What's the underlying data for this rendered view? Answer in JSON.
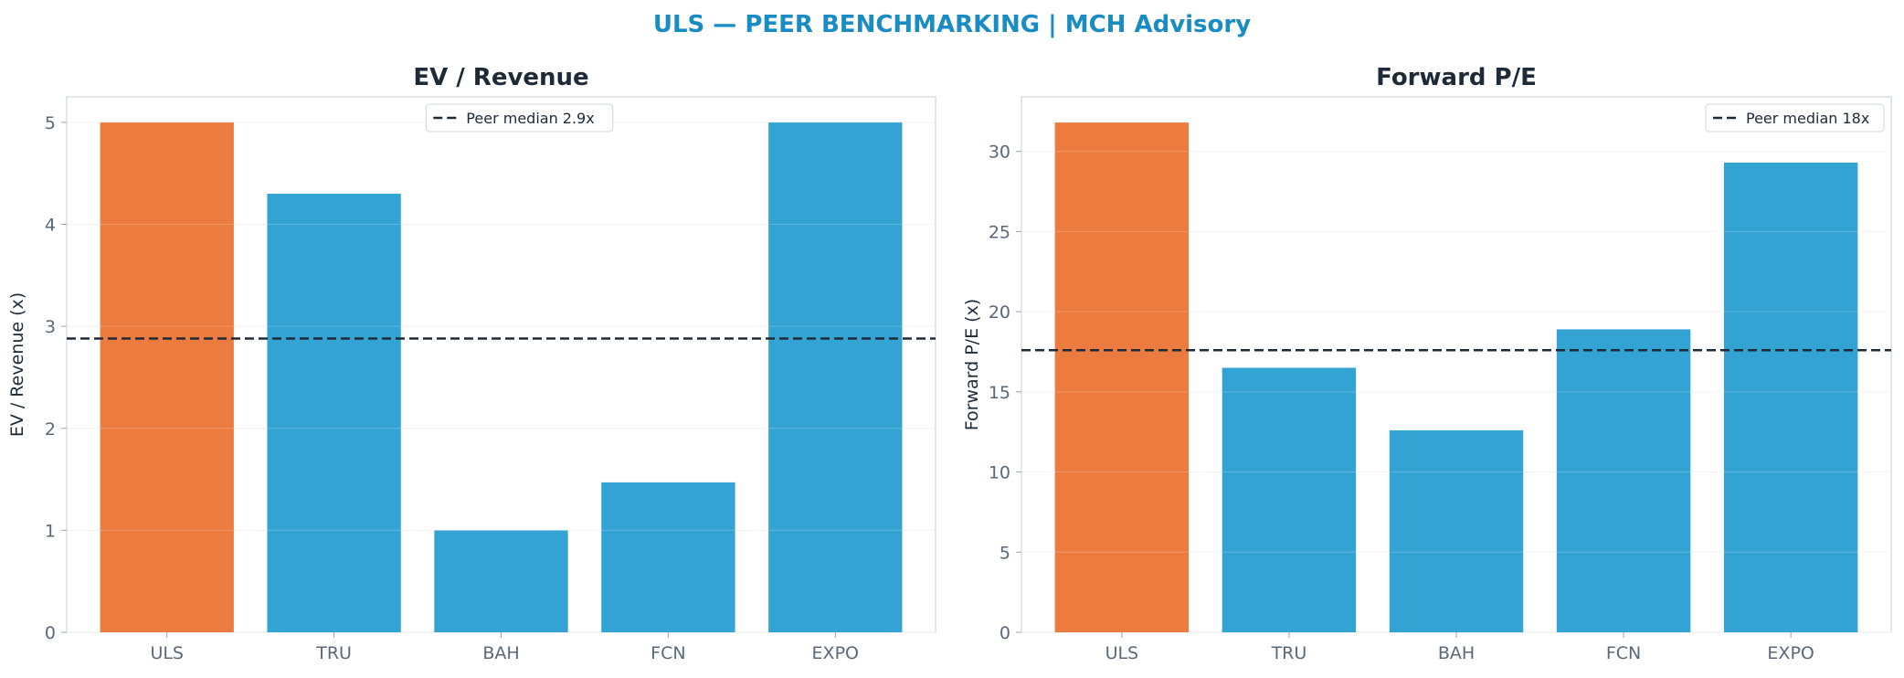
{
  "suptitle": "ULS — PEER BENCHMARKING | MCH Advisory",
  "colors": {
    "highlight": "#ec7b3f",
    "peer": "#33a3d4",
    "median_line": "#1e2a38",
    "title_accent": "#1a8cc4"
  },
  "chart_data": [
    {
      "type": "bar",
      "title": "EV / Revenue",
      "ylabel": "EV / Revenue (x)",
      "categories": [
        "ULS",
        "TRU",
        "BAH",
        "FCN",
        "EXPO"
      ],
      "values": [
        5.0,
        4.3,
        1.0,
        1.47,
        5.0
      ],
      "highlight": "ULS",
      "ylim": [
        0,
        5.25
      ],
      "yticks": [
        "0",
        "1",
        "2",
        "3",
        "4",
        "5"
      ],
      "reference_line": {
        "value": 2.88,
        "label": "Peer median 2.9x"
      },
      "legend": "upper-center",
      "grid": true
    },
    {
      "type": "bar",
      "title": "Forward P/E",
      "ylabel": "Forward P/E (x)",
      "categories": [
        "ULS",
        "TRU",
        "BAH",
        "FCN",
        "EXPO"
      ],
      "values": [
        31.8,
        16.5,
        12.6,
        18.9,
        29.3
      ],
      "highlight": "ULS",
      "ylim": [
        0,
        33.4
      ],
      "yticks": [
        "0",
        "5",
        "10",
        "15",
        "20",
        "25",
        "30"
      ],
      "reference_line": {
        "value": 17.6,
        "label": "Peer median 18x"
      },
      "legend": "top-right",
      "grid": true
    }
  ]
}
